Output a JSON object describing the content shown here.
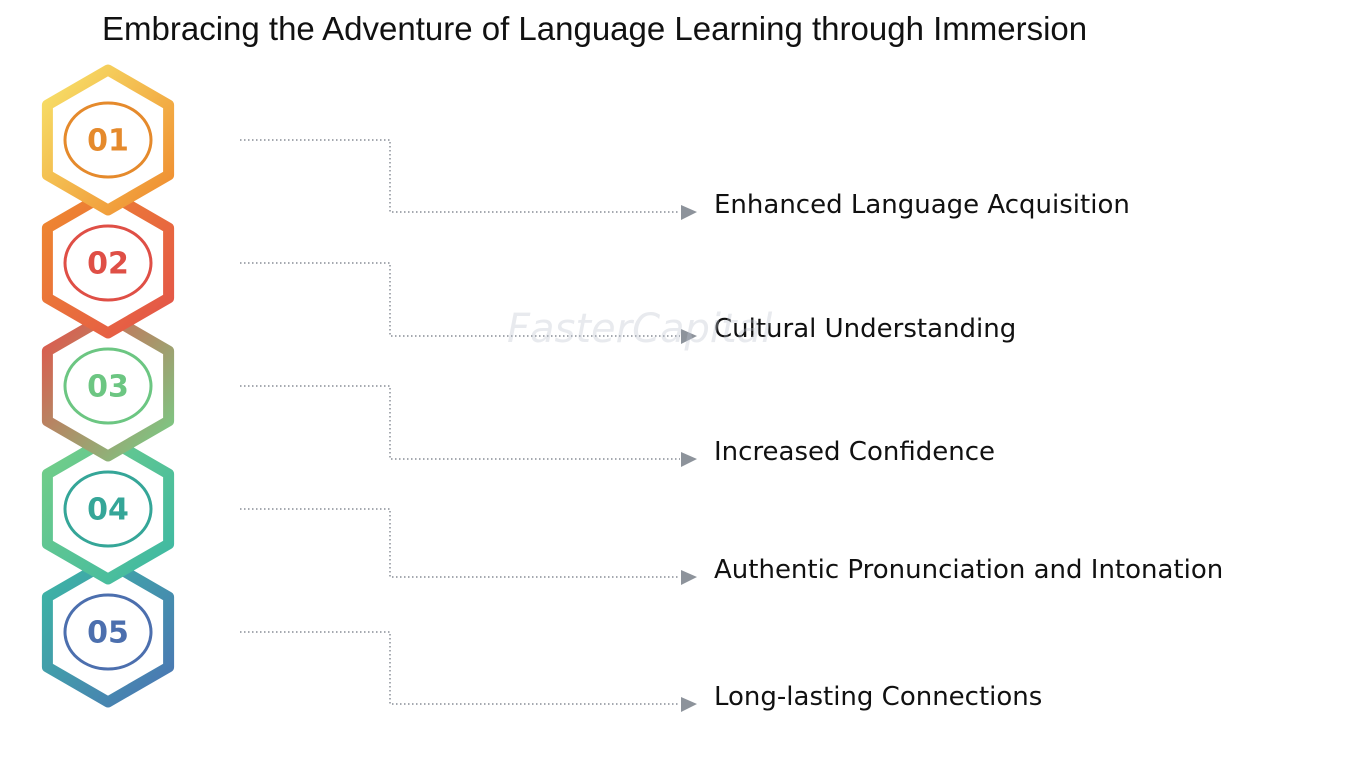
{
  "title": "Embracing the Adventure of Language Learning through Immersion",
  "watermark": "FasterCapital",
  "steps": [
    {
      "number": "01",
      "label": "Enhanced Language Acquisition",
      "color_a": "#f7e36a",
      "color_b": "#ef8a2e",
      "num_color": "#e58a2c"
    },
    {
      "number": "02",
      "label": "Cultural Understanding",
      "color_a": "#ef8a2e",
      "color_b": "#e3534a",
      "num_color": "#df4f46"
    },
    {
      "number": "03",
      "label": "Increased Confidence",
      "color_a": "#e3534a",
      "color_b": "#75cf87",
      "num_color": "#6cc682"
    },
    {
      "number": "04",
      "label": "Authentic Pronunciation and Intonation",
      "color_a": "#75cf87",
      "color_b": "#3cb8a4",
      "num_color": "#35a698"
    },
    {
      "number": "05",
      "label": "Long-lasting Connections",
      "color_a": "#3cb8a4",
      "color_b": "#4b74b4",
      "num_color": "#4c6fae"
    }
  ]
}
